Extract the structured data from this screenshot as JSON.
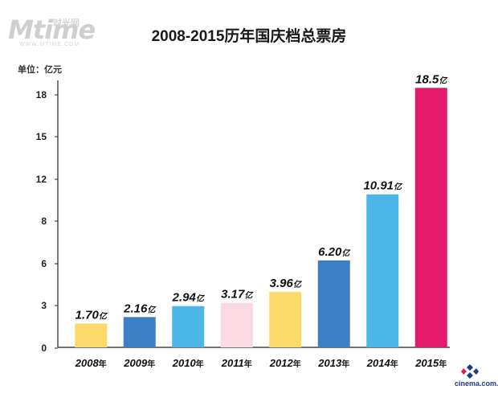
{
  "watermark": {
    "mark": "Mtime",
    "cn": "时光网",
    "url": "WWW.MTIME.COM"
  },
  "chart_data": {
    "type": "bar",
    "title": "2008-2015历年国庆档总票房",
    "unit_label": "单位：亿元",
    "categories": [
      "2008",
      "2009",
      "2010",
      "2011",
      "2012",
      "2013",
      "2014",
      "2015"
    ],
    "category_suffix": "年",
    "values": [
      1.7,
      2.16,
      2.94,
      3.17,
      3.96,
      6.2,
      10.91,
      18.5
    ],
    "value_labels": [
      "1.70",
      "2.16",
      "2.94",
      "3.17",
      "3.96",
      "6.20",
      "10.91",
      "18.5"
    ],
    "value_suffix": "亿",
    "colors": [
      "#FDD96A",
      "#3B7FC4",
      "#4CB6E8",
      "#FAD9E3",
      "#FDD96A",
      "#3B7FC4",
      "#4CB6E8",
      "#E5196A"
    ],
    "y_ticks": [
      0,
      3,
      6,
      8,
      12,
      15,
      18
    ],
    "ylim": [
      0,
      18.5
    ],
    "grid": false,
    "legend": "none"
  },
  "footer": {
    "source": "cinema.com.cn"
  }
}
